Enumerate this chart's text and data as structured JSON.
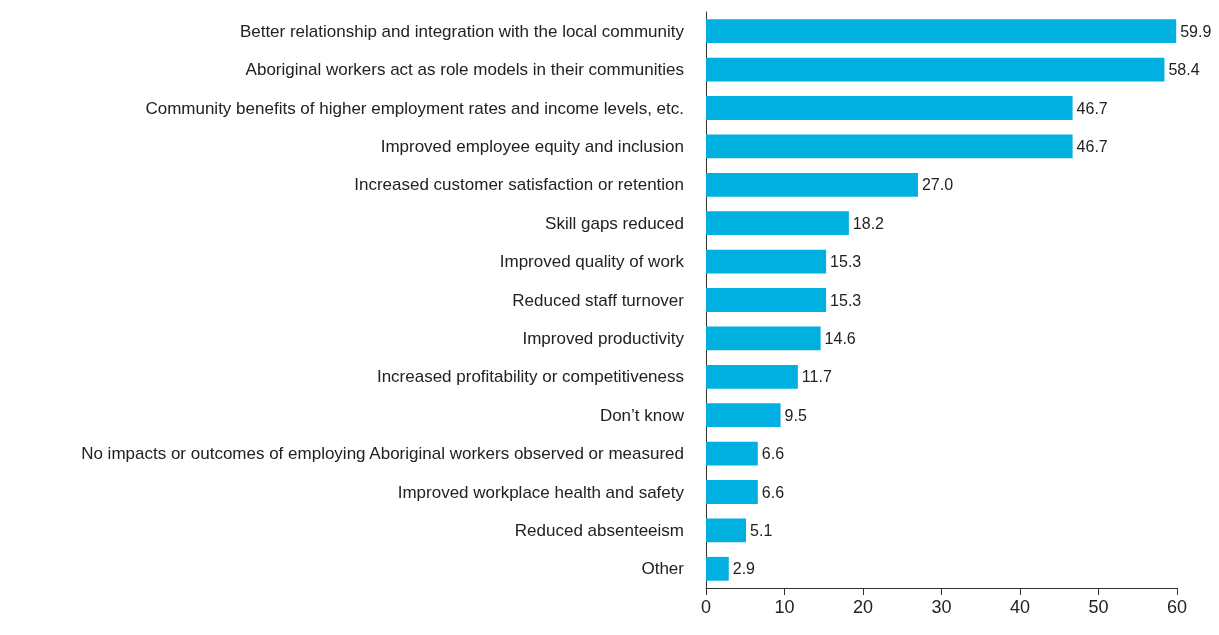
{
  "chart_data": {
    "type": "bar",
    "orientation": "horizontal",
    "categories": [
      "Better relationship and integration with the local community",
      "Aboriginal workers act as role models in their communities",
      "Community benefits of higher employment rates and income levels, etc.",
      "Improved employee equity and inclusion",
      "Increased customer satisfaction or retention",
      "Skill gaps reduced",
      "Improved quality of work",
      "Reduced staff turnover",
      "Improved productivity",
      "Increased profitability or competitiveness",
      "Don’t know",
      "No impacts or outcomes of employing Aboriginal workers observed or measured",
      "Improved workplace health and safety",
      "Reduced absenteeism",
      "Other"
    ],
    "values": [
      59.9,
      58.4,
      46.7,
      46.7,
      27.0,
      18.2,
      15.3,
      15.3,
      14.6,
      11.7,
      9.5,
      6.6,
      6.6,
      5.1,
      2.9
    ],
    "value_labels": [
      "59.9",
      "58.4",
      "46.7",
      "46.7",
      "27.0",
      "18.2",
      "15.3",
      "15.3",
      "14.6",
      "11.7",
      "9.5",
      "6.6",
      "6.6",
      "5.1",
      "2.9"
    ],
    "color": "#00b0e0",
    "xlim": [
      0,
      60
    ],
    "xticks": [
      0,
      10,
      20,
      30,
      40,
      50,
      60
    ],
    "grid": false
  }
}
